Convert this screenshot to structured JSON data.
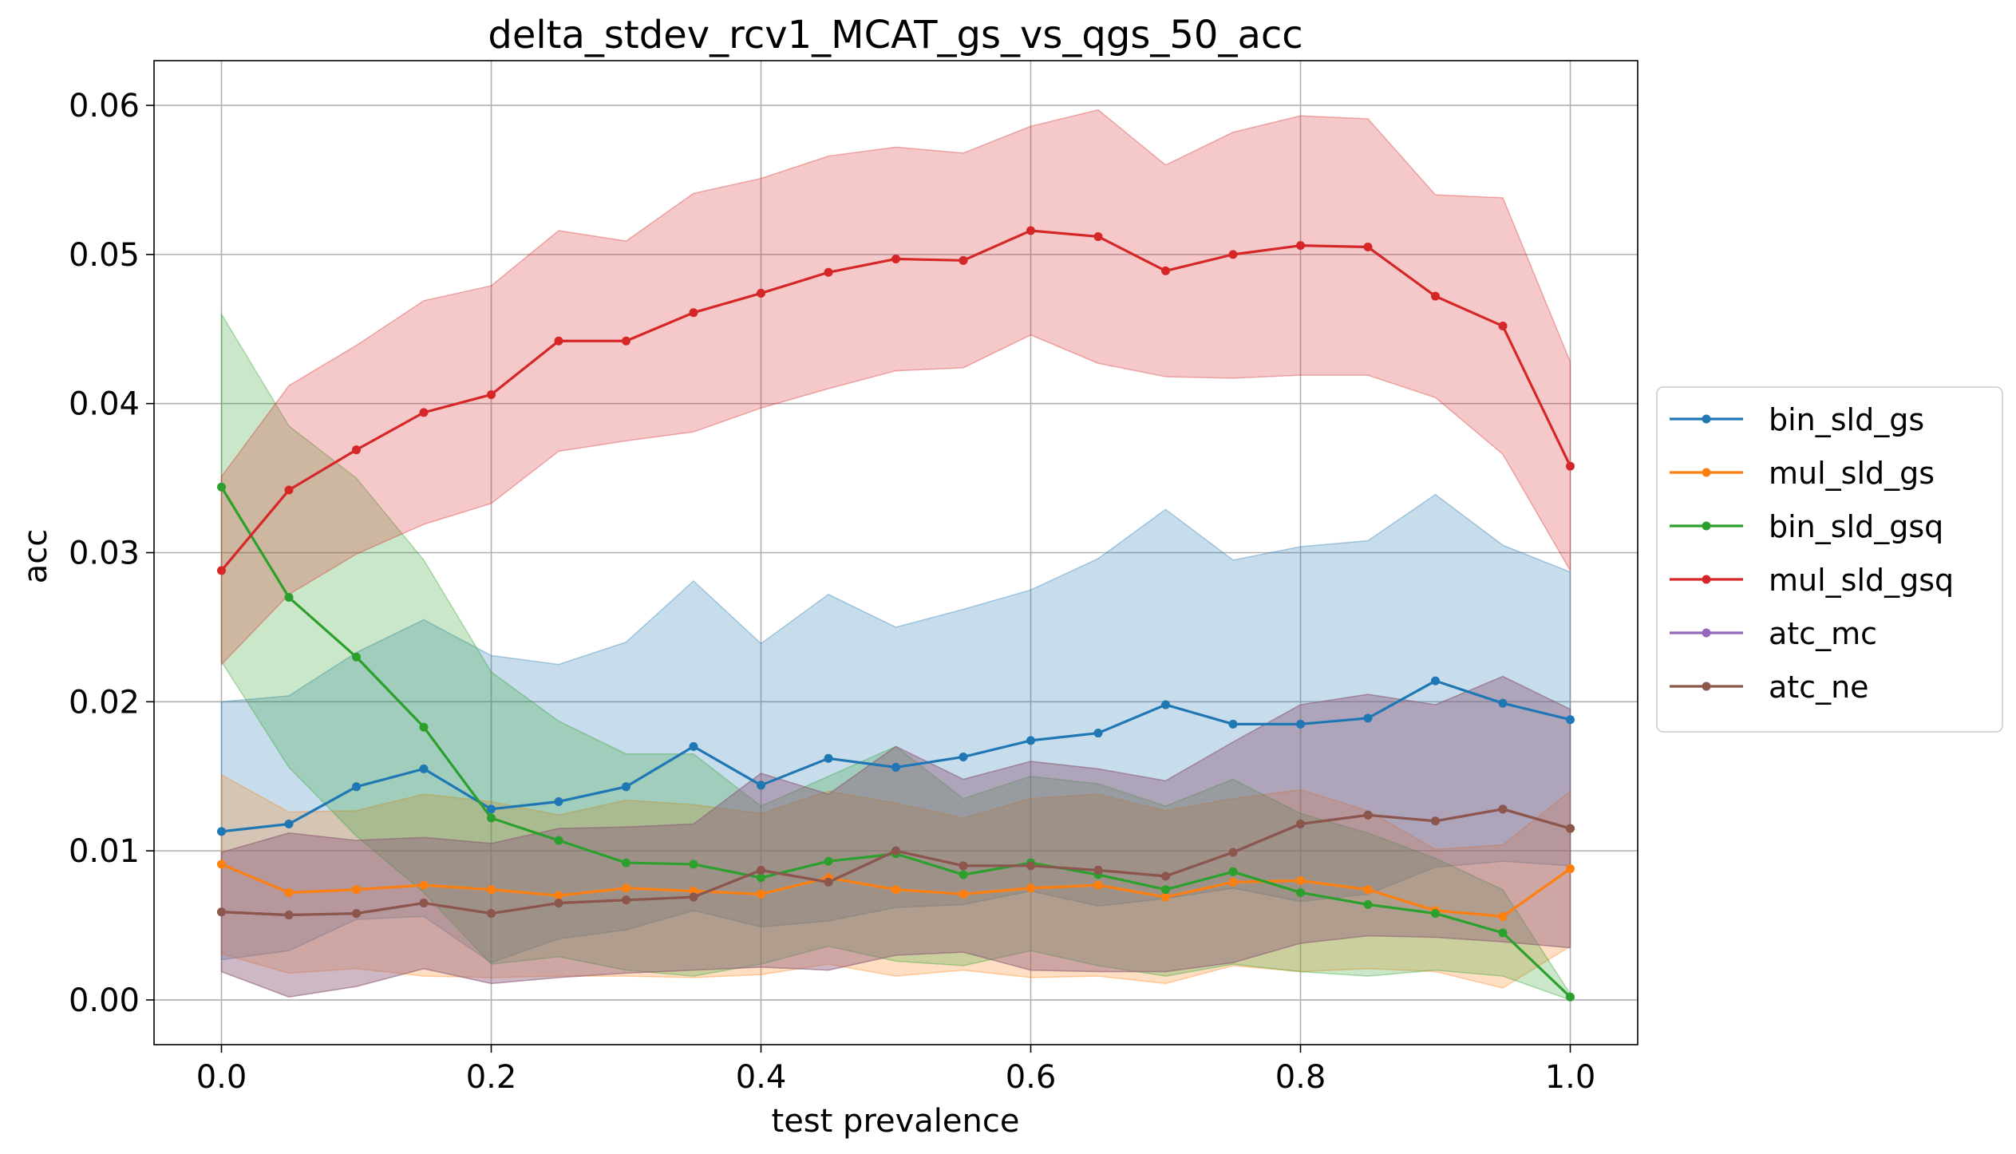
{
  "chart_data": {
    "type": "line",
    "title": "delta_stdev_rcv1_MCAT_gs_vs_qgs_50_acc",
    "xlabel": "test prevalence",
    "ylabel": "acc",
    "xlim": [
      -0.05,
      1.05
    ],
    "ylim": [
      -0.003,
      0.063
    ],
    "xticks": [
      0.0,
      0.2,
      0.4,
      0.6,
      0.8,
      1.0
    ],
    "xtick_labels": [
      "0.0",
      "0.2",
      "0.4",
      "0.6",
      "0.8",
      "1.0"
    ],
    "yticks": [
      0.0,
      0.01,
      0.02,
      0.03,
      0.04,
      0.05,
      0.06
    ],
    "ytick_labels": [
      "0.00",
      "0.01",
      "0.02",
      "0.03",
      "0.04",
      "0.05",
      "0.06"
    ],
    "grid": true,
    "legend_position": "outside-right",
    "x": [
      0.0,
      0.05,
      0.1,
      0.15,
      0.2,
      0.25,
      0.3,
      0.35,
      0.4,
      0.45,
      0.5,
      0.55,
      0.6,
      0.65,
      0.7,
      0.75,
      0.8,
      0.85,
      0.9,
      0.95,
      1.0
    ],
    "series": [
      {
        "name": "bin_sld_gs",
        "color": "#1f77b4",
        "values": [
          0.0113,
          0.0118,
          0.0143,
          0.0155,
          0.0128,
          0.0133,
          0.0143,
          0.017,
          0.0144,
          0.0162,
          0.0156,
          0.0163,
          0.0174,
          0.0179,
          0.0198,
          0.0185,
          0.0185,
          0.0189,
          0.0214,
          0.0199,
          0.0188
        ],
        "upper": [
          0.02,
          0.0204,
          0.0233,
          0.0255,
          0.0231,
          0.0225,
          0.024,
          0.0281,
          0.0239,
          0.0272,
          0.025,
          0.0262,
          0.0275,
          0.0296,
          0.0329,
          0.0295,
          0.0304,
          0.0308,
          0.0339,
          0.0305,
          0.0287
        ],
        "lower": [
          0.0027,
          0.0033,
          0.0054,
          0.0056,
          0.0025,
          0.0041,
          0.0047,
          0.006,
          0.0049,
          0.0053,
          0.0062,
          0.0064,
          0.0073,
          0.0063,
          0.0068,
          0.0075,
          0.0066,
          0.0071,
          0.0089,
          0.0093,
          0.009
        ]
      },
      {
        "name": "mul_sld_gs",
        "color": "#ff7f0e",
        "values": [
          0.0091,
          0.0072,
          0.0074,
          0.0077,
          0.0074,
          0.007,
          0.0075,
          0.0073,
          0.0071,
          0.0082,
          0.0074,
          0.0071,
          0.0075,
          0.0077,
          0.0069,
          0.0079,
          0.008,
          0.0074,
          0.006,
          0.0056,
          0.0088
        ],
        "upper": [
          0.0151,
          0.0126,
          0.0127,
          0.0138,
          0.0133,
          0.0124,
          0.0134,
          0.0131,
          0.0125,
          0.014,
          0.0132,
          0.0122,
          0.0135,
          0.0138,
          0.0127,
          0.0135,
          0.0141,
          0.0127,
          0.0101,
          0.0104,
          0.014
        ],
        "lower": [
          0.0031,
          0.0018,
          0.0021,
          0.0016,
          0.0015,
          0.0016,
          0.0016,
          0.0015,
          0.0017,
          0.0024,
          0.0016,
          0.002,
          0.0015,
          0.0016,
          0.0011,
          0.0023,
          0.0019,
          0.0021,
          0.0019,
          0.0008,
          0.0036
        ]
      },
      {
        "name": "bin_sld_gsq",
        "color": "#2ca02c",
        "values": [
          0.0344,
          0.027,
          0.023,
          0.0183,
          0.0122,
          0.0107,
          0.0092,
          0.0091,
          0.0082,
          0.0093,
          0.0098,
          0.0084,
          0.0092,
          0.0084,
          0.0074,
          0.0086,
          0.0072,
          0.0064,
          0.0058,
          0.0045,
          0.0002
        ],
        "upper": [
          0.046,
          0.0385,
          0.035,
          0.0295,
          0.022,
          0.0187,
          0.0165,
          0.0165,
          0.013,
          0.015,
          0.017,
          0.0135,
          0.015,
          0.0145,
          0.013,
          0.0148,
          0.0125,
          0.0112,
          0.0095,
          0.0074,
          0.0004
        ],
        "lower": [
          0.0227,
          0.0156,
          0.011,
          0.0072,
          0.0024,
          0.0029,
          0.002,
          0.0016,
          0.0024,
          0.0036,
          0.0026,
          0.0023,
          0.0033,
          0.0023,
          0.0016,
          0.0024,
          0.0019,
          0.0016,
          0.002,
          0.0016,
          0.0
        ]
      },
      {
        "name": "mul_sld_gsq",
        "color": "#d62728",
        "values": [
          0.0288,
          0.0342,
          0.0369,
          0.0394,
          0.0406,
          0.0442,
          0.0442,
          0.0461,
          0.0474,
          0.0488,
          0.0497,
          0.0496,
          0.0516,
          0.0512,
          0.0489,
          0.05,
          0.0506,
          0.0505,
          0.0472,
          0.0452,
          0.0358
        ],
        "upper": [
          0.0351,
          0.0412,
          0.0439,
          0.0469,
          0.0479,
          0.0516,
          0.0509,
          0.0541,
          0.0551,
          0.0566,
          0.0572,
          0.0568,
          0.0586,
          0.0597,
          0.056,
          0.0582,
          0.0593,
          0.0591,
          0.054,
          0.0538,
          0.0428
        ],
        "lower": [
          0.0225,
          0.0272,
          0.0299,
          0.0319,
          0.0333,
          0.0368,
          0.0375,
          0.0381,
          0.0397,
          0.041,
          0.0422,
          0.0424,
          0.0446,
          0.0427,
          0.0418,
          0.0417,
          0.0419,
          0.0419,
          0.0404,
          0.0366,
          0.0288
        ]
      },
      {
        "name": "atc_mc",
        "color": "#9467bd",
        "values": [
          0.0059,
          0.0057,
          0.0058,
          0.0065,
          0.0058,
          0.0065,
          0.0067,
          0.0069,
          0.0087,
          0.0079,
          0.01,
          0.009,
          0.009,
          0.0087,
          0.0083,
          0.0099,
          0.0118,
          0.0124,
          0.012,
          0.0128,
          0.0115
        ],
        "upper": [
          0.0099,
          0.0112,
          0.0107,
          0.0109,
          0.0105,
          0.0115,
          0.0116,
          0.0118,
          0.0152,
          0.0138,
          0.017,
          0.0148,
          0.016,
          0.0155,
          0.0147,
          0.0173,
          0.0198,
          0.0205,
          0.0198,
          0.0217,
          0.0195
        ],
        "lower": [
          0.0019,
          0.0002,
          0.0009,
          0.0021,
          0.0011,
          0.0015,
          0.0018,
          0.002,
          0.0022,
          0.002,
          0.003,
          0.0032,
          0.002,
          0.0019,
          0.0019,
          0.0025,
          0.0038,
          0.0043,
          0.0042,
          0.0039,
          0.0035
        ]
      },
      {
        "name": "atc_ne",
        "color": "#8c564b",
        "values": [
          0.0059,
          0.0057,
          0.0058,
          0.0065,
          0.0058,
          0.0065,
          0.0067,
          0.0069,
          0.0087,
          0.0079,
          0.01,
          0.009,
          0.009,
          0.0087,
          0.0083,
          0.0099,
          0.0118,
          0.0124,
          0.012,
          0.0128,
          0.0115
        ],
        "upper": [
          0.0099,
          0.0112,
          0.0107,
          0.0109,
          0.0105,
          0.0115,
          0.0116,
          0.0118,
          0.0152,
          0.0138,
          0.017,
          0.0148,
          0.016,
          0.0155,
          0.0147,
          0.0173,
          0.0198,
          0.0205,
          0.0198,
          0.0217,
          0.0195
        ],
        "lower": [
          0.0019,
          0.0002,
          0.0009,
          0.0021,
          0.0011,
          0.0015,
          0.0018,
          0.002,
          0.0022,
          0.002,
          0.003,
          0.0032,
          0.002,
          0.0019,
          0.0019,
          0.0025,
          0.0038,
          0.0043,
          0.0042,
          0.0039,
          0.0035
        ]
      }
    ]
  }
}
